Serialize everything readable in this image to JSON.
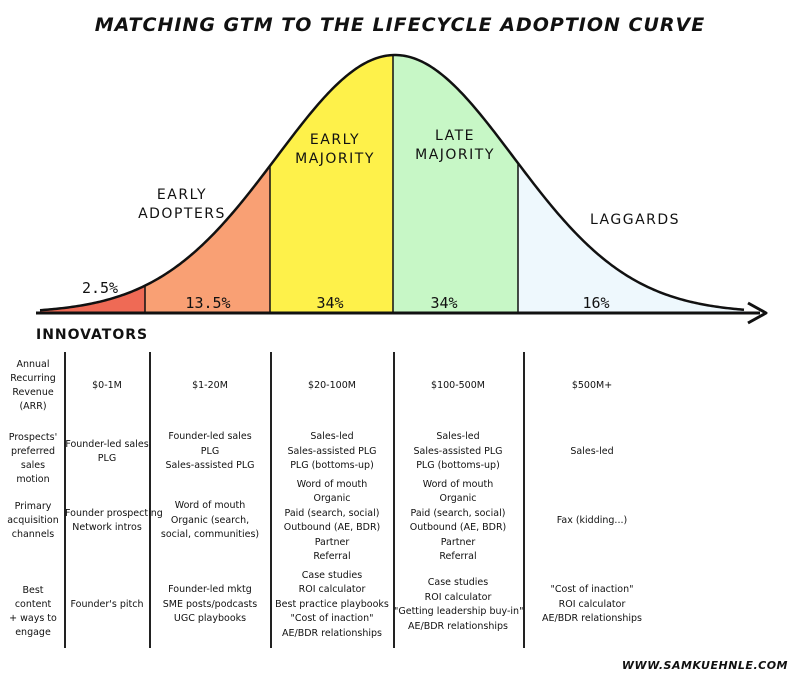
{
  "title": "MATCHING GTM TO THE LIFECYCLE ADOPTION CURVE",
  "segments": [
    {
      "name": "INNOVATORS",
      "percent": "2.5%",
      "color": "#ef6a55"
    },
    {
      "name": "EARLY ADOPTERS",
      "line1": "EARLY",
      "line2": "ADOPTERS",
      "percent": "13.5%",
      "color": "#f9a074"
    },
    {
      "name": "EARLY MAJORITY",
      "line1": "EARLY",
      "line2": "MAJORITY",
      "percent": "34%",
      "color": "#fef14a"
    },
    {
      "name": "LATE MAJORITY",
      "line1": "LATE",
      "line2": "MAJORITY",
      "percent": "34%",
      "color": "#c7f7c6"
    },
    {
      "name": "LAGGARDS",
      "percent": "16%",
      "color": "#eef8fd"
    }
  ],
  "rows": [
    {
      "label": [
        "Annual",
        "Recurring",
        "Revenue",
        "(ARR)"
      ],
      "cells": [
        [
          "$0-1M"
        ],
        [
          "$1-20M"
        ],
        [
          "$20-100M"
        ],
        [
          "$100-500M"
        ],
        [
          "$500M+"
        ]
      ]
    },
    {
      "label": [
        "Prospects'",
        "preferred",
        "sales motion"
      ],
      "cells": [
        [
          "Founder-led sales",
          "PLG"
        ],
        [
          "Founder-led sales",
          "PLG",
          "Sales-assisted PLG"
        ],
        [
          "Sales-led",
          "Sales-assisted PLG",
          "PLG (bottoms-up)"
        ],
        [
          "Sales-led",
          "Sales-assisted PLG",
          "PLG (bottoms-up)"
        ],
        [
          "Sales-led"
        ]
      ]
    },
    {
      "label": [
        "Primary",
        "acquisition",
        "channels"
      ],
      "cells": [
        [
          "Founder prospecting",
          "Network intros"
        ],
        [
          "Word of mouth",
          "Organic (search,",
          "social, communities)"
        ],
        [
          "Word of mouth",
          "Organic",
          "Paid (search, social)",
          "Outbound (AE, BDR)",
          "Partner",
          "Referral"
        ],
        [
          "Word of mouth",
          "Organic",
          "Paid (search, social)",
          "Outbound (AE, BDR)",
          "Partner",
          "Referral"
        ],
        [
          "Fax (kidding...)"
        ]
      ]
    },
    {
      "label": [
        "Best content",
        "+ ways to",
        "engage"
      ],
      "cells": [
        [
          "Founder's pitch"
        ],
        [
          "Founder-led mktg",
          "SME posts/podcasts",
          "UGC playbooks"
        ],
        [
          "Case studies",
          "ROI calculator",
          "Best practice playbooks",
          "\"Cost of inaction\"",
          "AE/BDR relationships"
        ],
        [
          "Case studies",
          "ROI calculator",
          "\"Getting leadership buy-in\"",
          "AE/BDR relationships"
        ],
        [
          "\"Cost of inaction\"",
          "ROI calculator",
          "AE/BDR relationships"
        ]
      ]
    }
  ],
  "footer": "WWW.SAMKUEHNLE.COM"
}
